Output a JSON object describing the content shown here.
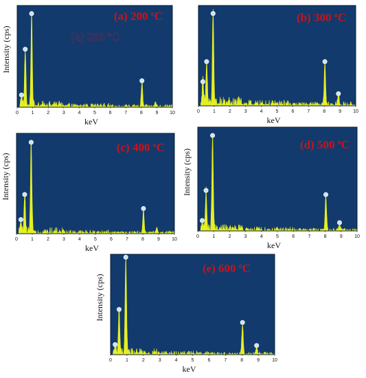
{
  "chart_data": [
    {
      "type": "line",
      "title": "(a) 200",
      "title_unit_sup": "o",
      "title_unit": "C",
      "overlay_text": "(a) 200",
      "xlabel": "keV",
      "ylabel": "Intensity (cps)",
      "xlim": [
        0,
        10
      ],
      "ylim": [
        0,
        100
      ],
      "x_ticks": [
        "0",
        "1",
        "2",
        "3",
        "4",
        "5",
        "6",
        "7",
        "8",
        "9",
        "10"
      ],
      "peaks": [
        {
          "x": 0.28,
          "y": 10
        },
        {
          "x": 0.52,
          "y": 55
        },
        {
          "x": 0.93,
          "y": 90
        },
        {
          "x": 8.04,
          "y": 24
        },
        {
          "x": 8.9,
          "y": 5
        }
      ],
      "noise_level": 4
    },
    {
      "type": "line",
      "title": "(b) 300",
      "title_unit_sup": "o",
      "title_unit": "C",
      "xlabel": "keV",
      "ylabel": "",
      "xlim": [
        0,
        10
      ],
      "ylim": [
        0,
        100
      ],
      "x_ticks": [
        "0",
        "1",
        "2",
        "3",
        "4",
        "5",
        "6",
        "7",
        "8",
        "9",
        "10"
      ],
      "peaks": [
        {
          "x": 0.28,
          "y": 22
        },
        {
          "x": 0.52,
          "y": 42
        },
        {
          "x": 0.93,
          "y": 90
        },
        {
          "x": 8.04,
          "y": 42
        },
        {
          "x": 8.9,
          "y": 10
        }
      ],
      "noise_level": 6
    },
    {
      "type": "line",
      "title": "(c) 400",
      "title_unit_sup": "o",
      "title_unit": "C",
      "xlabel": "keV",
      "ylabel": "Intensity (cps)",
      "xlim": [
        0,
        10
      ],
      "ylim": [
        0,
        100
      ],
      "x_ticks": [
        "0",
        "1",
        "2",
        "3",
        "4",
        "5",
        "6",
        "7",
        "8",
        "9",
        "10"
      ],
      "peaks": [
        {
          "x": 0.28,
          "y": 12
        },
        {
          "x": 0.52,
          "y": 37
        },
        {
          "x": 0.93,
          "y": 89
        },
        {
          "x": 8.04,
          "y": 23
        },
        {
          "x": 8.9,
          "y": 5
        }
      ],
      "noise_level": 4
    },
    {
      "type": "line",
      "title": "(d) 500",
      "title_unit_sup": "o",
      "title_unit": "C",
      "xlabel": "keV",
      "ylabel": "Intensity (cps)",
      "xlim": [
        0,
        10
      ],
      "ylim": [
        0,
        100
      ],
      "x_ticks": [
        "0",
        "1",
        "2",
        "3",
        "4",
        "5",
        "6",
        "7",
        "8",
        "9",
        "10"
      ],
      "peaks": [
        {
          "x": 0.28,
          "y": 8
        },
        {
          "x": 0.52,
          "y": 37
        },
        {
          "x": 0.93,
          "y": 90
        },
        {
          "x": 8.04,
          "y": 33
        },
        {
          "x": 8.9,
          "y": 6
        }
      ],
      "noise_level": 4
    },
    {
      "type": "line",
      "title": "(e) 600",
      "title_unit_sup": "o",
      "title_unit": "C",
      "xlabel": "keV",
      "ylabel": "Intensity (cps)",
      "xlim": [
        0,
        10
      ],
      "ylim": [
        0,
        100
      ],
      "x_ticks": [
        "0",
        "1",
        "2",
        "3",
        "4",
        "5",
        "6",
        "7",
        "8",
        "9",
        "10"
      ],
      "peaks": [
        {
          "x": 0.28,
          "y": 8
        },
        {
          "x": 0.52,
          "y": 43
        },
        {
          "x": 0.93,
          "y": 95
        },
        {
          "x": 8.04,
          "y": 30
        },
        {
          "x": 8.9,
          "y": 7
        }
      ],
      "noise_level": 4
    }
  ],
  "colors": {
    "plot_background": "#123a6d",
    "spectrum": "#e6ef22",
    "title": "#c8141a",
    "peak_marker": "#cfe3f3"
  }
}
